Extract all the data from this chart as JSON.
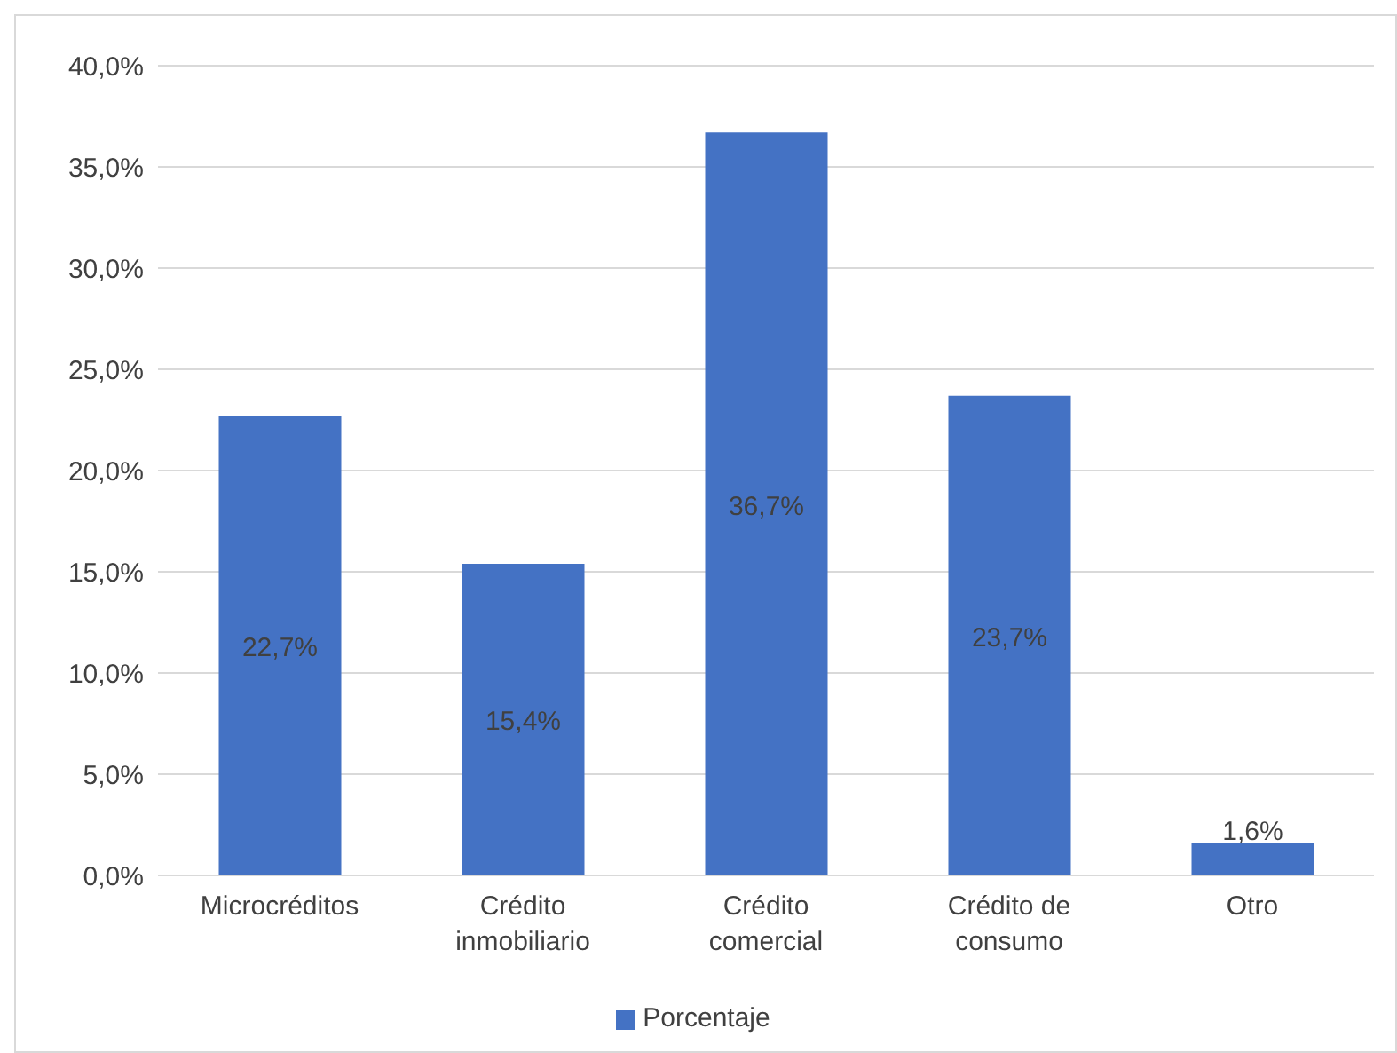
{
  "chart_data": {
    "type": "bar",
    "categories": [
      "Microcréditos",
      "Crédito inmobiliario",
      "Crédito comercial",
      "Crédito de consumo",
      "Otro"
    ],
    "series": [
      {
        "name": "Porcentaje",
        "color": "#4472c4",
        "values": [
          22.7,
          15.4,
          36.7,
          23.7,
          1.6
        ],
        "value_labels": [
          "22,7%",
          "15,4%",
          "36,7%",
          "23,7%",
          "1,6%"
        ]
      }
    ],
    "ylim": [
      0,
      40
    ],
    "yticks": [
      {
        "value": 0,
        "label": "0,0%"
      },
      {
        "value": 5,
        "label": "5,0%"
      },
      {
        "value": 10,
        "label": "10,0%"
      },
      {
        "value": 15,
        "label": "15,0%"
      },
      {
        "value": 20,
        "label": "20,0%"
      },
      {
        "value": 25,
        "label": "25,0%"
      },
      {
        "value": 30,
        "label": "30,0%"
      },
      {
        "value": 35,
        "label": "35,0%"
      },
      {
        "value": 40,
        "label": "40,0%"
      }
    ],
    "grid": "y",
    "legend": "bottom"
  }
}
